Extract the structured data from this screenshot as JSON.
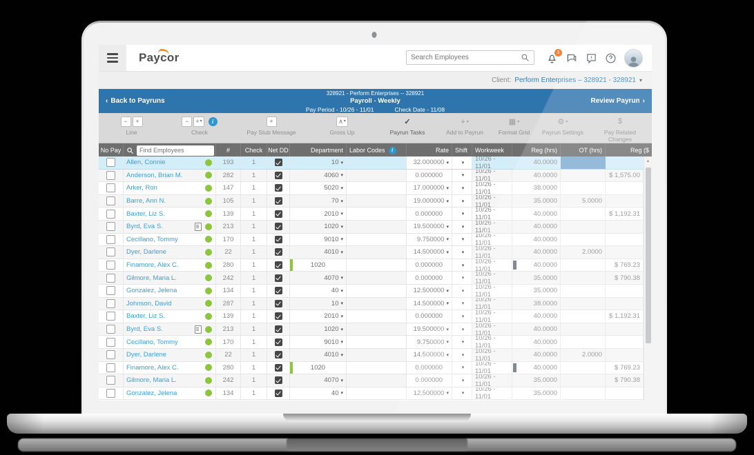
{
  "header": {
    "logo": "Paycor",
    "search_placeholder": "Search Employees",
    "badge": "3"
  },
  "client_bar": {
    "label": "Client:",
    "value": "Perform Enterprises – 328921 - 328921"
  },
  "payrun_bar": {
    "back": "Back to Payruns",
    "title": "328921 - Perform Enterprises -- 328921",
    "subtitle": "Payroll - Weekly",
    "pay_period": "Pay Period - 10/26 - 11/01",
    "check_date": "Check Date - 11/08",
    "review": "Review Payrun"
  },
  "toolbar": {
    "line": "Line",
    "check": "Check",
    "pay_stub": "Pay Stub Message",
    "gross_up": "Gross Up",
    "payrun_tasks": "Payrun Tasks",
    "add_to_payrun": "Add to Payrun",
    "format_grid": "Format Grid",
    "payrun_settings": "Payrun Settings",
    "pay_related": "Pay Related Changes"
  },
  "icons": {
    "minus": "−",
    "plus": "+",
    "dropdown": "▾",
    "caret": "∧",
    "check": "✓",
    "grid": "▦",
    "gear": "⚙",
    "dollar": "$",
    "back": "‹",
    "forward": "›",
    "up": "▲",
    "info": "i"
  },
  "colors": {
    "accent_blue": "#2e74ad",
    "link_blue": "#3aa0d8",
    "status_green": "#8dc63e",
    "selected_row": "#d3edf9",
    "selected_cell": "#7fabd1",
    "badge_orange": "#f0823a",
    "logo_orange": "#f78f1e"
  },
  "grid": {
    "search_placeholder": "Find Employees",
    "headers": {
      "no_pay": "No Pay",
      "num": "#",
      "check": "Check",
      "net_dd": "Net DD",
      "department": "Department",
      "labor_codes": "Labor Codes",
      "rate": "Rate",
      "shift": "Shift",
      "workweek": "Workweek",
      "reg_hrs": "Reg (hrs)",
      "ot_hrs": "OT (hrs)",
      "reg_amt": "Reg ($"
    },
    "rows": [
      {
        "name": "Allen, Connie",
        "num": "193",
        "check": "1",
        "dept": "10",
        "dept_arrow": true,
        "rate": "32.000000",
        "rate_arrow": true,
        "week": "10/26 - 11/01",
        "reg": "40.0000",
        "ot": "",
        "amt": "",
        "selected": true
      },
      {
        "name": "Anderson, Brian M.",
        "num": "282",
        "check": "1",
        "dept": "4060",
        "dept_arrow": true,
        "rate": "0.000000",
        "rate_arrow": false,
        "week": "10/26 - 11/01",
        "reg": "40.0000",
        "ot": "",
        "amt": "$ 1,575.00"
      },
      {
        "name": "Arker, Ron",
        "num": "147",
        "check": "1",
        "dept": "5020",
        "dept_arrow": true,
        "rate": "17.000000",
        "rate_arrow": true,
        "week": "10/26 - 11/01",
        "reg": "38.0000",
        "ot": "",
        "amt": ""
      },
      {
        "name": "Barre, Ann N.",
        "num": "105",
        "check": "1",
        "dept": "70",
        "dept_arrow": true,
        "rate": "19.000000",
        "rate_arrow": true,
        "week": "10/26 - 11/01",
        "reg": "35.0000",
        "ot": "5.0000",
        "amt": ""
      },
      {
        "name": "Baxter, Liz S.",
        "num": "139",
        "check": "1",
        "dept": "2010",
        "dept_arrow": true,
        "rate": "0.000000",
        "rate_arrow": false,
        "week": "10/26 - 11/01",
        "reg": "40.0000",
        "ot": "",
        "amt": "$ 1,192.31"
      },
      {
        "name": "Byrd, Eva S.",
        "doc": true,
        "num": "213",
        "check": "1",
        "dept": "1020",
        "dept_arrow": true,
        "rate": "19.500000",
        "rate_arrow": true,
        "week": "10/26 - 11/01",
        "reg": "40.0000",
        "ot": "",
        "amt": ""
      },
      {
        "name": "Cecillano, Tommy",
        "num": "170",
        "check": "1",
        "dept": "9010",
        "dept_arrow": true,
        "rate": "9.750000",
        "rate_arrow": true,
        "week": "10/26 - 11/01",
        "reg": "40.0000",
        "ot": "",
        "amt": ""
      },
      {
        "name": "Dyer, Darlene",
        "num": "22",
        "check": "1",
        "dept": "4010",
        "dept_arrow": true,
        "rate": "14.500000",
        "rate_arrow": true,
        "week": "10/26 - 11/01",
        "reg": "40.0000",
        "ot": "2.0000",
        "amt": ""
      },
      {
        "name": "Finamore, Alex C.",
        "num": "280",
        "check": "1",
        "dept": "1020",
        "dept_arrow": false,
        "dept_bar": true,
        "rate": "0.000000",
        "rate_arrow": false,
        "week": "10/26 - 11/01",
        "reg": "40.0000",
        "reg_bar": true,
        "ot": "",
        "amt": "$ 769.23"
      },
      {
        "name": "Gilmore, Maria L.",
        "num": "242",
        "check": "1",
        "dept": "4070",
        "dept_arrow": true,
        "rate": "0.000000",
        "rate_arrow": false,
        "week": "10/26 - 11/01",
        "reg": "35.0000",
        "ot": "",
        "amt": "$ 790.38"
      },
      {
        "name": "Gonzalez, Jelena",
        "num": "134",
        "check": "1",
        "dept": "40",
        "dept_arrow": true,
        "rate": "12.500000",
        "rate_arrow": true,
        "week": "10/26 - 11/01",
        "reg": "35.0000",
        "ot": "",
        "amt": ""
      },
      {
        "name": "Johnson, David",
        "num": "287",
        "check": "1",
        "dept": "10",
        "dept_arrow": true,
        "rate": "14.500000",
        "rate_arrow": true,
        "week": "10/26 - 11/01",
        "reg": "38.0000",
        "ot": "",
        "amt": ""
      },
      {
        "name": "Baxter, Liz S.",
        "num": "139",
        "check": "1",
        "dept": "2010",
        "dept_arrow": true,
        "rate": "0.000000",
        "rate_arrow": false,
        "week": "10/26 - 11/01",
        "reg": "40.0000",
        "ot": "",
        "amt": "$ 1,192.31"
      },
      {
        "name": "Byrd, Eva S.",
        "doc": true,
        "num": "213",
        "check": "1",
        "dept": "1020",
        "dept_arrow": true,
        "rate": "19.500000",
        "rate_arrow": true,
        "week": "10/26 - 11/01",
        "reg": "40.0000",
        "ot": "",
        "amt": ""
      },
      {
        "name": "Cecillano, Tommy",
        "num": "170",
        "check": "1",
        "dept": "9010",
        "dept_arrow": true,
        "rate": "9.750000",
        "rate_arrow": true,
        "week": "10/26 - 11/01",
        "reg": "40.0000",
        "ot": "",
        "amt": ""
      },
      {
        "name": "Dyer, Darlene",
        "num": "22",
        "check": "1",
        "dept": "4010",
        "dept_arrow": true,
        "rate": "14.500000",
        "rate_arrow": true,
        "week": "10/26 - 11/01",
        "reg": "40.0000",
        "ot": "2.0000",
        "amt": ""
      },
      {
        "name": "Finamore, Alex C.",
        "num": "280",
        "check": "1",
        "dept": "1020",
        "dept_arrow": false,
        "dept_bar": true,
        "rate": "0.000000",
        "rate_arrow": false,
        "week": "10/26 - 11/01",
        "reg": "40.0000",
        "reg_bar": true,
        "ot": "",
        "amt": "$ 769.23"
      },
      {
        "name": "Gilmore, Maria L.",
        "num": "242",
        "check": "1",
        "dept": "4070",
        "dept_arrow": true,
        "rate": "0.000000",
        "rate_arrow": false,
        "week": "10/26 - 11/01",
        "reg": "35.0000",
        "ot": "",
        "amt": "$ 790.38"
      },
      {
        "name": "Gonzalez, Jelena",
        "num": "134",
        "check": "1",
        "dept": "40",
        "dept_arrow": true,
        "rate": "12.500000",
        "rate_arrow": true,
        "week": "10/26 - 11/01",
        "reg": "35.0000",
        "ot": "",
        "amt": ""
      }
    ]
  }
}
